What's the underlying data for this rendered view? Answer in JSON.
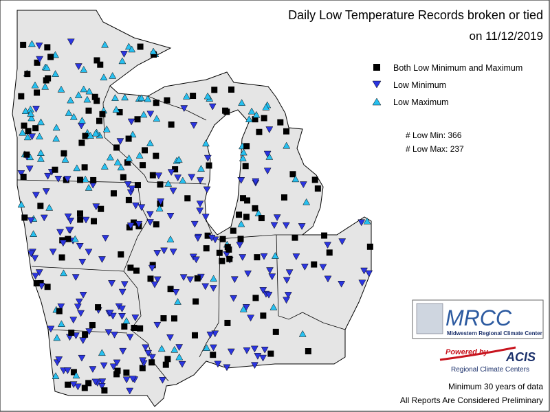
{
  "header": {
    "title": "Daily Low Temperature Records broken or tied",
    "date": "on 11/12/2019"
  },
  "legend": {
    "items": [
      {
        "symbol": "square",
        "label": "Both Low Minimum and Maximum"
      },
      {
        "symbol": "down-triangle",
        "label": "Low Minimum"
      },
      {
        "symbol": "up-triangle",
        "label": "Low Maximum"
      }
    ]
  },
  "counts": {
    "low_min": "# Low Min: 366",
    "low_max": "# Low Max: 237"
  },
  "logos": {
    "mrcc": "MRCC",
    "mrcc_full": "Midwestern Regional Climate Center",
    "powered_by": "Powered by",
    "acis": "ACIS",
    "rcc": "Regional Climate Centers"
  },
  "notes": [
    "Minimum 30 years of data",
    "All Reports Are Considered Preliminary"
  ]
}
